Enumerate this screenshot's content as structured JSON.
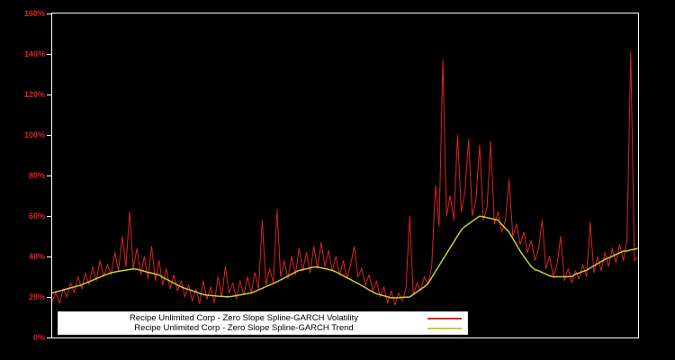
{
  "window": {
    "background": "#000000"
  },
  "chart_data": {
    "type": "line",
    "title": "",
    "xlabel": "",
    "ylabel": "",
    "ylim": [
      0,
      160
    ],
    "yticks": [
      0,
      20,
      40,
      60,
      80,
      100,
      120,
      140,
      160
    ],
    "ytick_labels": [
      "0%",
      "20%",
      "40%",
      "60%",
      "80%",
      "100%",
      "120%",
      "140%",
      "160%"
    ],
    "y_axis_format": "percent",
    "grid": false,
    "legend_position": "bottom-center",
    "series": [
      {
        "name": "Recipe Unlimited Corp - Zero Slope Spline-GARCH Volatility",
        "color": "#dd2222",
        "line_width": 1,
        "values": [
          18,
          22,
          17,
          24,
          20,
          27,
          22,
          30,
          24,
          32,
          26,
          35,
          28,
          38,
          30,
          36,
          31,
          42,
          33,
          50,
          35,
          62,
          34,
          44,
          31,
          40,
          29,
          45,
          28,
          38,
          26,
          34,
          24,
          31,
          23,
          28,
          20,
          26,
          18,
          24,
          17,
          28,
          19,
          25,
          17,
          30,
          20,
          35,
          22,
          27,
          19,
          28,
          21,
          30,
          22,
          32,
          24,
          58,
          26,
          34,
          27,
          63,
          30,
          38,
          29,
          40,
          31,
          44,
          33,
          42,
          32,
          45,
          34,
          47,
          35,
          43,
          33,
          40,
          31,
          38,
          29,
          36,
          45,
          30,
          34,
          26,
          31,
          23,
          28,
          20,
          25,
          17,
          23,
          16,
          22,
          18,
          24,
          60,
          21,
          27,
          23,
          30,
          26,
          35,
          75,
          55,
          137,
          60,
          70,
          58,
          100,
          62,
          72,
          98,
          60,
          68,
          95,
          58,
          64,
          97,
          56,
          62,
          52,
          58,
          78,
          50,
          56,
          46,
          52,
          42,
          48,
          38,
          44,
          58,
          34,
          40,
          30,
          36,
          50,
          28,
          34,
          27,
          33,
          29,
          36,
          30,
          57,
          32,
          40,
          33,
          42,
          35,
          44,
          37,
          46,
          38,
          48,
          141,
          38,
          40
        ]
      },
      {
        "name": "Recipe Unlimited Corp - Zero Slope Spline-GARCH Trend",
        "color": "#cccc33",
        "line_width": 1.5,
        "values": [
          22,
          22.5,
          23,
          23.5,
          24,
          24.5,
          25,
          25.5,
          26,
          26.8,
          27.5,
          28.3,
          29.1,
          29.8,
          30.6,
          31.3,
          32,
          32.3,
          32.7,
          33,
          33.3,
          33.6,
          33.9,
          33.7,
          33.2,
          32.7,
          32.2,
          31.8,
          31.3,
          30.9,
          29.7,
          28.8,
          27.8,
          26.9,
          25.9,
          25,
          24.3,
          23.7,
          23.1,
          22.5,
          21.8,
          21.2,
          20.9,
          20.7,
          20.6,
          20.4,
          20.3,
          20.1,
          20.1,
          20.4,
          20.7,
          21,
          21.4,
          21.7,
          22,
          22.7,
          23.5,
          24.3,
          25.1,
          25.9,
          26.7,
          27.5,
          28.5,
          29.4,
          30.4,
          31.3,
          32.3,
          33.1,
          33.5,
          33.9,
          34.4,
          34.8,
          34.8,
          34.4,
          34,
          33.6,
          33.1,
          32.4,
          31.4,
          30.5,
          29.5,
          28.6,
          27.6,
          26.7,
          25.6,
          24.6,
          23.5,
          22.5,
          21.6,
          21.1,
          20.6,
          20.1,
          19.6,
          19.6,
          19.7,
          19.8,
          19.9,
          20,
          21.3,
          22.5,
          23.8,
          25,
          26.7,
          29.6,
          32.6,
          35.5,
          38.5,
          41.4,
          44.3,
          47.2,
          50.2,
          53.1,
          54.9,
          56.1,
          57.4,
          58.7,
          59.9,
          59.6,
          59.2,
          58.8,
          58.4,
          57.9,
          55.8,
          53.9,
          52,
          48.9,
          45.8,
          42.6,
          40,
          37.5,
          35,
          33.5,
          33,
          32.1,
          31.3,
          30.5,
          29.9,
          30,
          30,
          30,
          30,
          30.1,
          31.3,
          31.9,
          32.6,
          33.2,
          34.4,
          35.4,
          36.5,
          37.5,
          38.6,
          39.3,
          40.1,
          41,
          41.8,
          42.6,
          42.7,
          43.2,
          43.6,
          44
        ]
      }
    ]
  },
  "colors": {
    "axis_frame": "#ffffff",
    "tick_label": "#dd2222",
    "legend_background": "#ffffff",
    "legend_text": "#000000",
    "background": "#000000"
  }
}
